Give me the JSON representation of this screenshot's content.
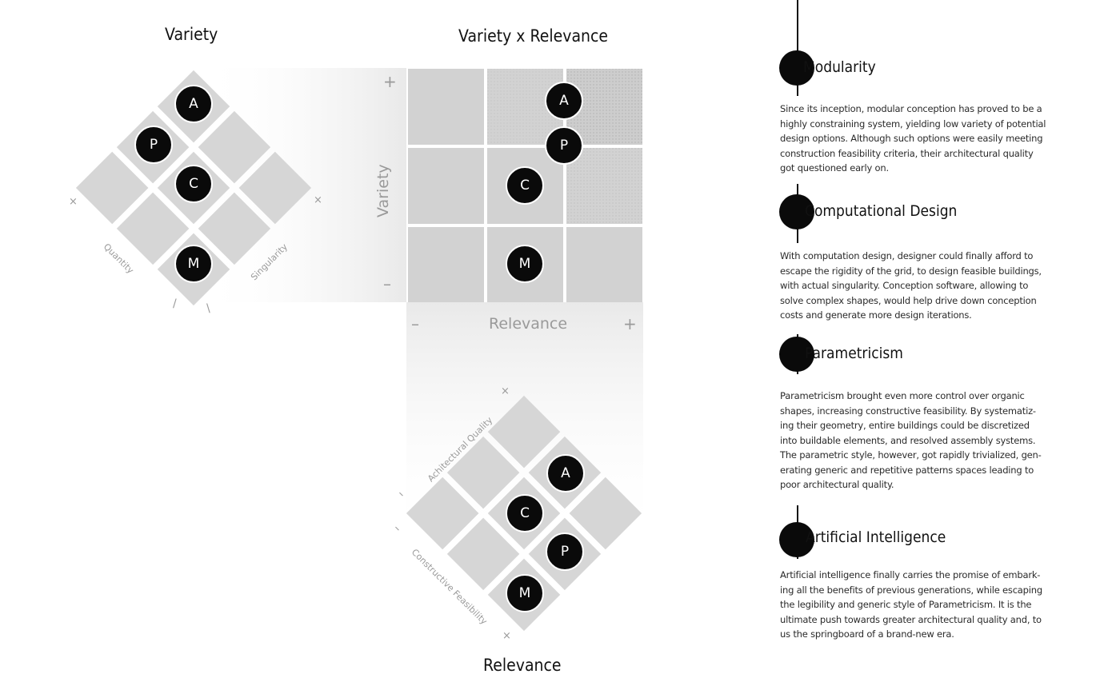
{
  "diagram": {
    "variety_title": "Variety",
    "matrix_title": "Variety x Relevance",
    "relevance_title": "Relevance",
    "axis": {
      "variety": "Variety",
      "relevance": "Relevance"
    },
    "ticks": {
      "plus": "+",
      "minus": "–",
      "cross": "×",
      "dash": "/"
    },
    "variety_diamond_axes": {
      "left": "Quantity",
      "right": "Singularity"
    },
    "relevance_diamond_axes": {
      "upper": "Achitectural Quality",
      "lower": "Constructive Feasibility"
    },
    "markers": {
      "architectural_intelligence": "A",
      "parametricism": "P",
      "computational_design": "C",
      "modularity": "M"
    }
  },
  "timeline": [
    {
      "heading": "Modularity",
      "text": "Since its inception, modular conception has proved to be a highly constraining system, yielding low variety of potential design options. Although such options were easily meeting construction feasibility criteria, their architectural quality got questioned early on."
    },
    {
      "heading": "Computational Design",
      "text": "With computation design, designer could finally afford to escape the rigidity of the grid, to design feasible buildings, with actual singularity. Conception software, allowing to solve complex shapes, would help drive down conception costs and generate more design iterations."
    },
    {
      "heading": "Parametricism",
      "text": "Parametricism brought even more control over organic shapes, increasing constructive feasibility. By systematiz- ing their geometry, entire buildings could be discretized into buildable elements, and resolved assembly systems. The parametric style, however, got rapidly trivialized, gen- erating generic and repetitive patterns spaces leading to poor architectural quality."
    },
    {
      "heading": "Artificial Intelligence",
      "text": "Artificial intelligence finally carries the promise of embark- ing all the benefits of previous generations, while escaping the legibility and generic style of Parametricism. It is the ultimate push towards greater architectural quality and, to us the springboard of a brand-new era."
    }
  ]
}
